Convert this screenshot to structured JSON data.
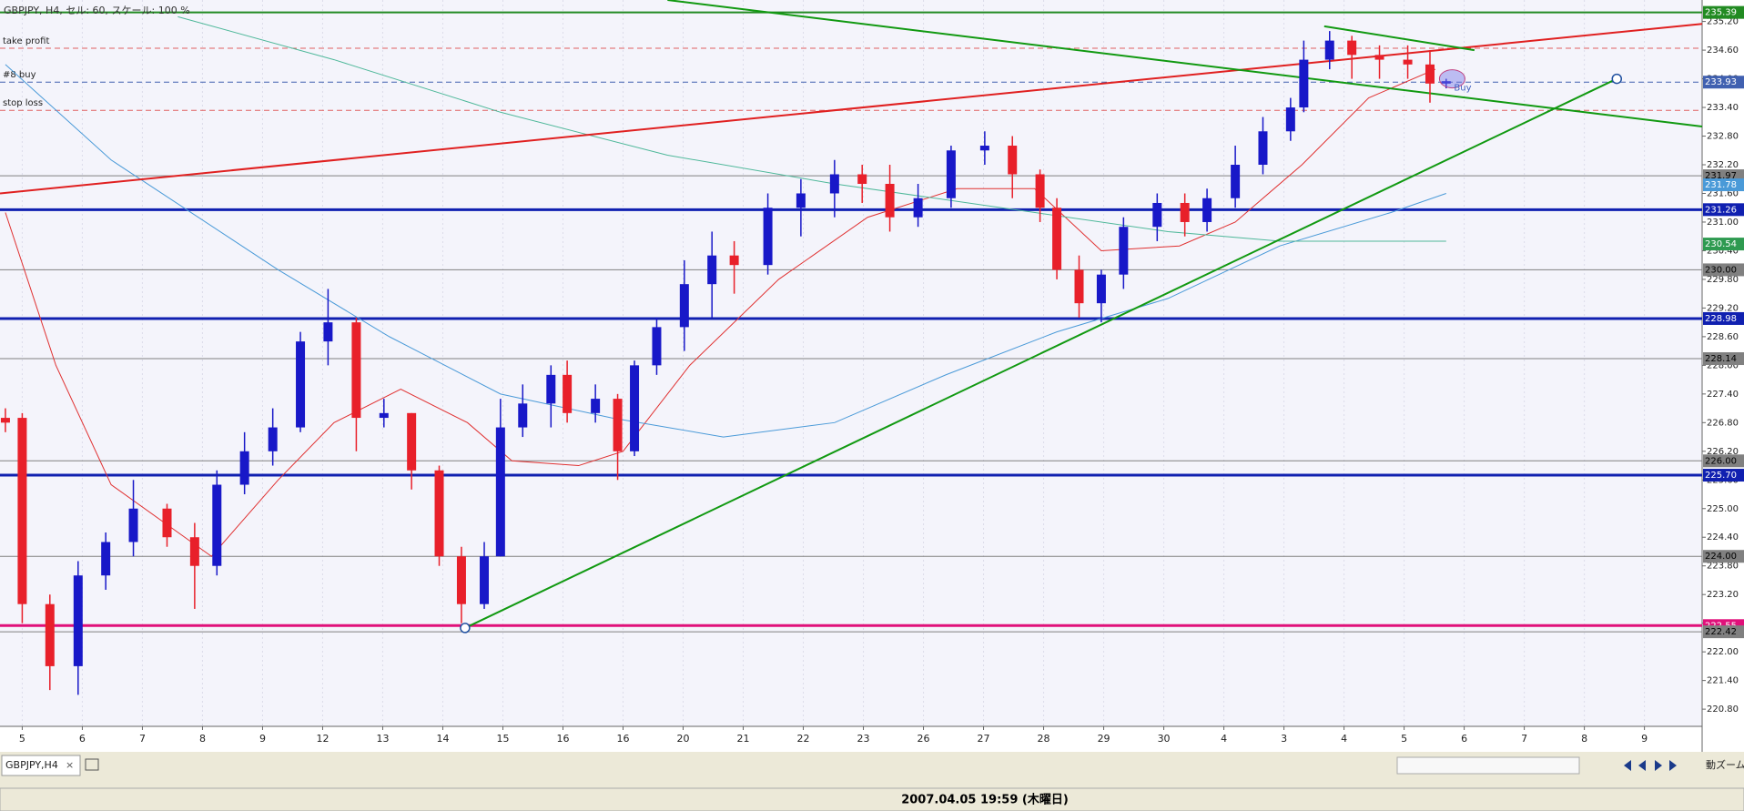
{
  "chart_data": {
    "type": "candlestick",
    "title": "GBPJPY, H4, セル: 60, スケール: 100 %",
    "categories": [
      "5",
      "6",
      "7",
      "8",
      "9",
      "12",
      "13",
      "14",
      "15",
      "16",
      "16",
      "20",
      "21",
      "22",
      "23",
      "26",
      "27",
      "28",
      "29",
      "30",
      "4",
      "3",
      "4",
      "5",
      "6",
      "7",
      "8",
      "9"
    ],
    "xlim": [
      -0.37,
      27.96
    ],
    "ylim": [
      220.44,
      235.65
    ],
    "yticks": [
      {
        "value": 220.8,
        "label": "220.80"
      },
      {
        "value": 221.4,
        "label": "221.40"
      },
      {
        "value": 222,
        "label": "222.00"
      },
      {
        "value": 222.6,
        "label": "222.60"
      },
      {
        "value": 223.2,
        "label": "223.20"
      },
      {
        "value": 223.8,
        "label": "223.80"
      },
      {
        "value": 224.4,
        "label": "224.40"
      },
      {
        "value": 225,
        "label": "225.00"
      },
      {
        "value": 225.6,
        "label": "225.60"
      },
      {
        "value": 226.2,
        "label": "226.20"
      },
      {
        "value": 226.8,
        "label": "226.80"
      },
      {
        "value": 227.4,
        "label": "227.40"
      },
      {
        "value": 228,
        "label": "228.00"
      },
      {
        "value": 228.6,
        "label": "228.60"
      },
      {
        "value": 229.2,
        "label": "229.20"
      },
      {
        "value": 229.8,
        "label": "229.80"
      },
      {
        "value": 230.4,
        "label": "230.40"
      },
      {
        "value": 231,
        "label": "231.00"
      },
      {
        "value": 231.6,
        "label": "231.60"
      },
      {
        "value": 232.2,
        "label": "232.20"
      },
      {
        "value": 232.8,
        "label": "232.80"
      },
      {
        "value": 233.4,
        "label": "233.40"
      },
      {
        "value": 234,
        "label": "234.00"
      },
      {
        "value": 234.6,
        "label": "234.60"
      },
      {
        "value": 235.2,
        "label": "235.20"
      }
    ],
    "up_color": "#1818c8",
    "down_color": "#e8202a",
    "candles": {
      "x": [
        -0.28,
        0,
        0.46,
        0.93,
        1.39,
        1.85,
        2.41,
        2.87,
        3.24,
        3.7,
        4.17,
        4.63,
        5.09,
        5.56,
        6.02,
        6.48,
        6.94,
        7.31,
        7.69,
        7.96,
        8.33,
        8.8,
        9.07,
        9.54,
        9.91,
        10.19,
        10.56,
        11.02,
        11.48,
        11.85,
        12.41,
        12.96,
        13.52,
        13.98,
        14.44,
        14.91,
        15.46,
        16.02,
        16.48,
        16.94,
        17.22,
        17.59,
        17.96,
        18.33,
        18.89,
        19.35,
        19.72,
        20.19,
        20.65,
        21.11,
        21.33,
        21.76,
        22.13,
        22.59,
        23.06,
        23.43,
        23.7
      ],
      "open": [
        226.9,
        226.9,
        223,
        221.7,
        223.6,
        224.3,
        225,
        224.4,
        223.8,
        225.5,
        226.2,
        226.7,
        228.5,
        228.9,
        226.9,
        227,
        225.8,
        224,
        223,
        224,
        226.7,
        227.2,
        227.8,
        227,
        227.3,
        226.2,
        228,
        228.8,
        229.7,
        230.3,
        230.1,
        231.3,
        231.6,
        232,
        231.8,
        231.1,
        231.5,
        232.5,
        232.6,
        232,
        231.3,
        230,
        229.3,
        229.9,
        230.9,
        231.4,
        231,
        231.5,
        232.2,
        232.9,
        233.4,
        234.4,
        234.8,
        234.5,
        234.4,
        234.3,
        233.9
      ],
      "high": [
        227.1,
        227,
        223.2,
        223.9,
        224.5,
        225.6,
        225.1,
        224.7,
        225.8,
        226.6,
        227.1,
        228.7,
        229.6,
        229,
        227.3,
        227,
        225.9,
        224.2,
        224.3,
        227.3,
        227.6,
        228,
        228.1,
        227.6,
        227.4,
        228.1,
        229,
        230.2,
        230.8,
        230.6,
        231.6,
        231.9,
        232.3,
        232.2,
        232.2,
        231.8,
        232.6,
        232.9,
        232.8,
        232.1,
        231.5,
        230.3,
        230,
        231.1,
        231.6,
        231.6,
        231.7,
        232.6,
        233.2,
        233.6,
        234.8,
        235,
        234.9,
        234.7,
        234.7,
        234.6,
        234
      ],
      "low": [
        226.6,
        222.6,
        221.2,
        221.1,
        223.3,
        224,
        224.2,
        222.9,
        223.6,
        225.3,
        225.9,
        226.6,
        228,
        226.2,
        226.7,
        225.4,
        223.8,
        222.6,
        222.9,
        224,
        226.5,
        226.7,
        226.8,
        226.8,
        225.6,
        226.1,
        227.8,
        228.3,
        229,
        229.5,
        229.9,
        230.7,
        231.1,
        231.4,
        230.8,
        230.9,
        231.3,
        232.2,
        231.5,
        231,
        229.8,
        229,
        228.9,
        229.6,
        230.6,
        230.7,
        230.8,
        231.3,
        232,
        232.7,
        233.3,
        234.2,
        234,
        234,
        234,
        233.5,
        233.8
      ],
      "close": [
        226.8,
        223,
        221.7,
        223.6,
        224.3,
        225,
        224.4,
        223.8,
        225.5,
        226.2,
        226.7,
        228.5,
        228.9,
        226.9,
        227,
        225.8,
        224,
        223,
        224,
        226.7,
        227.2,
        227.8,
        227,
        227.3,
        226.2,
        228,
        228.8,
        229.7,
        230.3,
        230.1,
        231.3,
        231.6,
        232,
        231.8,
        231.1,
        231.5,
        232.5,
        232.6,
        232,
        231.3,
        230,
        229.3,
        229.9,
        230.9,
        231.4,
        231,
        231.5,
        232.2,
        232.9,
        233.4,
        234.4,
        234.8,
        234.5,
        234.4,
        234.3,
        233.9,
        233.95
      ]
    },
    "series": [
      {
        "color": "#e03030",
        "x": [
          -0.28,
          0.56,
          1.48,
          3.15,
          4.26,
          5.19,
          6.3,
          7.41,
          8.15,
          9.26,
          10,
          11.11,
          12.59,
          14.07,
          15.56,
          16.85,
          17.96,
          19.26,
          20.19,
          21.3,
          22.41,
          23.52
        ],
        "values": [
          231.2,
          228,
          225.5,
          224,
          225.6,
          226.8,
          227.5,
          226.8,
          226,
          225.9,
          226.2,
          228,
          229.8,
          231.1,
          231.7,
          231.7,
          230.4,
          230.5,
          231,
          232.2,
          233.6,
          234.2
        ]
      },
      {
        "color": "#4a9ad8",
        "x": [
          -0.28,
          1.48,
          4.26,
          6.11,
          7.96,
          9.81,
          11.67,
          13.52,
          15.37,
          17.22,
          19.07,
          20.93,
          22.78,
          23.7
        ],
        "values": [
          234.3,
          232.3,
          230,
          228.6,
          227.4,
          226.9,
          226.5,
          226.8,
          227.8,
          228.7,
          229.4,
          230.5,
          231.2,
          231.6
        ]
      },
      {
        "color": "#4fb89a",
        "x": [
          2.59,
          5.19,
          7.96,
          10.74,
          13.52,
          16.3,
          19.07,
          20.93,
          23.7
        ],
        "values": [
          235.3,
          234.4,
          233.3,
          232.4,
          231.8,
          231.3,
          230.8,
          230.6,
          230.6
        ]
      }
    ],
    "trendlines": [
      {
        "color": "#e02020",
        "x": [
          -0.37,
          27.96
        ],
        "values": [
          231.6,
          235.15
        ]
      },
      {
        "color": "#119911",
        "x": [
          7.37,
          26.54
        ],
        "values": [
          222.5,
          234.0
        ]
      },
      {
        "color": "#119911",
        "x": [
          10.74,
          27.96
        ],
        "values": [
          235.65,
          233.0
        ]
      },
      {
        "color": "#119911",
        "x": [
          21.67,
          24.17
        ],
        "values": [
          235.1,
          234.6
        ]
      }
    ],
    "levels": [
      {
        "value": 235.39,
        "label": "235.39",
        "color": "#228b22",
        "width": 2
      },
      {
        "value": 234.64,
        "name": "take profit",
        "color": "#e06060",
        "width": 1,
        "dash": true
      },
      {
        "value": 233.93,
        "label": "233.93",
        "name": "#8 buy",
        "color": "#4060b0",
        "width": 1,
        "dash": true
      },
      {
        "value": 233.34,
        "name": "stop loss",
        "color": "#e06060",
        "width": 1,
        "dash": true
      },
      {
        "value": 231.97,
        "label": "231.97",
        "color": "#808080",
        "width": 1
      },
      {
        "value": 231.78,
        "label": "231.78",
        "color": "#4a9ad8",
        "width": 0
      },
      {
        "value": 231.26,
        "label": "231.26",
        "color": "#1020b0",
        "width": 3
      },
      {
        "value": 230.54,
        "label": "230.54",
        "color": "#2e9a50",
        "width": 0
      },
      {
        "value": 230,
        "label": "230.00",
        "color": "#808080",
        "width": 1
      },
      {
        "value": 228.98,
        "label": "228.98",
        "color": "#1020b0",
        "width": 3
      },
      {
        "value": 228.14,
        "label": "228.14",
        "color": "#808080",
        "width": 1
      },
      {
        "value": 226,
        "label": "226.00",
        "color": "#808080",
        "width": 1
      },
      {
        "value": 225.7,
        "label": "225.70",
        "color": "#1020b0",
        "width": 3
      },
      {
        "value": 224,
        "label": "224.00",
        "color": "#808080",
        "width": 1
      },
      {
        "value": 222.55,
        "label": "222.55",
        "color": "#e0107a",
        "width": 3
      },
      {
        "value": 222.42,
        "label": "222.42",
        "color": "#808080",
        "width": 1
      }
    ],
    "buy_marker": {
      "text": "Buy",
      "x": 23.8,
      "value": 234.0
    },
    "tab_label": "GBPJPY,H4",
    "tab_close": "×",
    "status": "2007.04.05 19:59 (木曜日)",
    "zoom_label": "動ズーム"
  }
}
